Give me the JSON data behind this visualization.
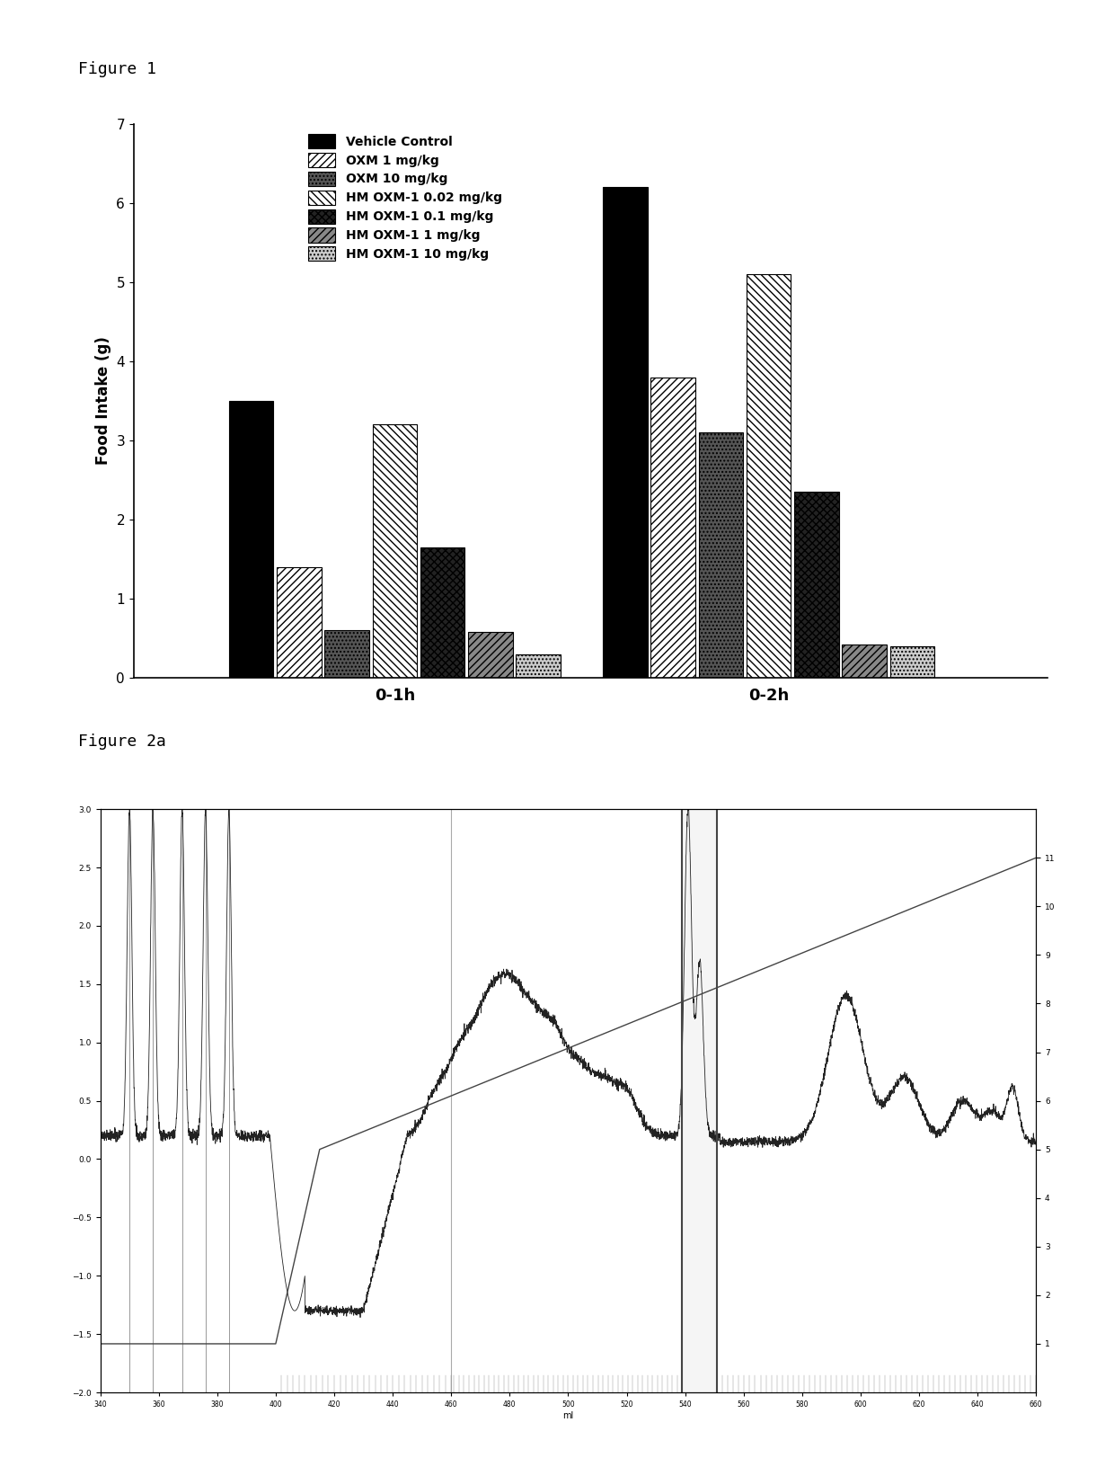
{
  "fig1_title": "Figure 1",
  "fig2_title": "Figure 2a",
  "groups": [
    "0-1h",
    "0-2h"
  ],
  "series_labels": [
    "Vehicle Control",
    "OXM 1 mg/kg",
    "OXM 10 mg/kg",
    "HM OXM-1 0.02 mg/kg",
    "HM OXM-1 0.1 mg/kg",
    "HM OXM-1 1 mg/kg",
    "HM OXM-1 10 mg/kg"
  ],
  "values_0_1h": [
    3.5,
    1.4,
    0.6,
    3.2,
    1.65,
    0.58,
    0.3
  ],
  "values_0_2h": [
    6.2,
    3.8,
    3.1,
    5.1,
    2.35,
    0.42,
    0.4
  ],
  "ylabel": "Food Intake (g)",
  "ylim": [
    0,
    7
  ],
  "yticks": [
    0,
    1,
    2,
    3,
    4,
    5,
    6,
    7
  ],
  "background_color": "#ffffff",
  "fig1_label_fontsize": 13,
  "axis_label_fontsize": 12,
  "tick_fontsize": 11,
  "legend_fontsize": 10,
  "group_label_fontsize": 13
}
